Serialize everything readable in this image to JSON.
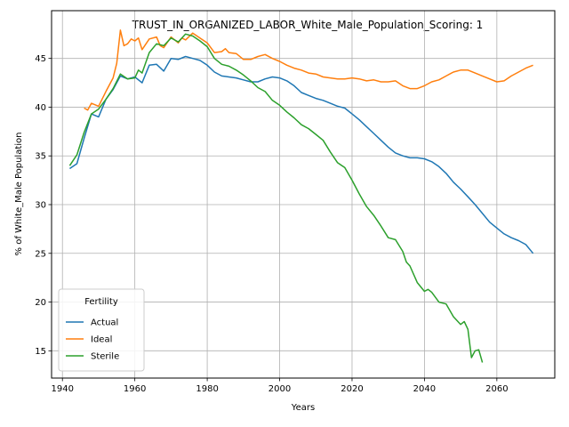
{
  "chart_data": {
    "type": "line",
    "title": "TRUST_IN_ORGANIZED_LABOR_White_Male_Population_Scoring: 1",
    "xlabel": "Years",
    "ylabel": "% of White_Male Population",
    "xlim": [
      1937,
      2076
    ],
    "ylim": [
      12.2,
      49.9
    ],
    "x_ticks": [
      1940,
      1960,
      1980,
      2000,
      2020,
      2040,
      2060
    ],
    "y_ticks": [
      15,
      20,
      25,
      30,
      35,
      40,
      45
    ],
    "grid": true,
    "legend": {
      "title": "Fertility",
      "placement": "lower-left"
    },
    "series": [
      {
        "name": "Actual",
        "color": "#1f77b4",
        "points": [
          [
            1942,
            33.7
          ],
          [
            1944,
            34.2
          ],
          [
            1946,
            36.8
          ],
          [
            1948,
            39.3
          ],
          [
            1950,
            39.0
          ],
          [
            1952,
            40.8
          ],
          [
            1954,
            41.8
          ],
          [
            1956,
            43.2
          ],
          [
            1958,
            42.9
          ],
          [
            1960,
            43.1
          ],
          [
            1962,
            42.5
          ],
          [
            1964,
            44.3
          ],
          [
            1966,
            44.4
          ],
          [
            1968,
            43.7
          ],
          [
            1970,
            45.0
          ],
          [
            1972,
            44.9
          ],
          [
            1974,
            45.2
          ],
          [
            1976,
            45.0
          ],
          [
            1978,
            44.8
          ],
          [
            1980,
            44.3
          ],
          [
            1982,
            43.6
          ],
          [
            1984,
            43.2
          ],
          [
            1986,
            43.1
          ],
          [
            1988,
            43.0
          ],
          [
            1990,
            42.8
          ],
          [
            1992,
            42.6
          ],
          [
            1994,
            42.6
          ],
          [
            1996,
            42.9
          ],
          [
            1998,
            43.1
          ],
          [
            2000,
            43.0
          ],
          [
            2002,
            42.7
          ],
          [
            2004,
            42.2
          ],
          [
            2006,
            41.5
          ],
          [
            2008,
            41.2
          ],
          [
            2010,
            40.9
          ],
          [
            2012,
            40.7
          ],
          [
            2014,
            40.4
          ],
          [
            2016,
            40.1
          ],
          [
            2018,
            39.9
          ],
          [
            2020,
            39.3
          ],
          [
            2022,
            38.7
          ],
          [
            2024,
            38.0
          ],
          [
            2026,
            37.3
          ],
          [
            2028,
            36.6
          ],
          [
            2030,
            35.9
          ],
          [
            2032,
            35.3
          ],
          [
            2034,
            35.0
          ],
          [
            2036,
            34.8
          ],
          [
            2038,
            34.8
          ],
          [
            2040,
            34.7
          ],
          [
            2042,
            34.4
          ],
          [
            2044,
            33.9
          ],
          [
            2046,
            33.2
          ],
          [
            2048,
            32.3
          ],
          [
            2050,
            31.6
          ],
          [
            2052,
            30.8
          ],
          [
            2054,
            30.0
          ],
          [
            2056,
            29.1
          ],
          [
            2058,
            28.2
          ],
          [
            2060,
            27.6
          ],
          [
            2062,
            27.0
          ],
          [
            2064,
            26.6
          ],
          [
            2066,
            26.3
          ],
          [
            2068,
            25.9
          ],
          [
            2070,
            25.0
          ]
        ]
      },
      {
        "name": "Ideal",
        "color": "#ff7f0e",
        "points": [
          [
            1946,
            39.9
          ],
          [
            1947,
            39.7
          ],
          [
            1948,
            40.4
          ],
          [
            1950,
            40.1
          ],
          [
            1952,
            41.6
          ],
          [
            1954,
            43.0
          ],
          [
            1955,
            44.5
          ],
          [
            1956,
            47.9
          ],
          [
            1957,
            46.3
          ],
          [
            1958,
            46.5
          ],
          [
            1959,
            47.0
          ],
          [
            1960,
            46.8
          ],
          [
            1961,
            47.1
          ],
          [
            1962,
            45.9
          ],
          [
            1964,
            47.0
          ],
          [
            1966,
            47.2
          ],
          [
            1967,
            46.3
          ],
          [
            1968,
            46.1
          ],
          [
            1970,
            47.2
          ],
          [
            1972,
            46.6
          ],
          [
            1973,
            47.1
          ],
          [
            1974,
            46.9
          ],
          [
            1976,
            47.6
          ],
          [
            1978,
            47.1
          ],
          [
            1980,
            46.6
          ],
          [
            1982,
            45.6
          ],
          [
            1984,
            45.7
          ],
          [
            1985,
            46.0
          ],
          [
            1986,
            45.6
          ],
          [
            1988,
            45.5
          ],
          [
            1990,
            44.9
          ],
          [
            1992,
            44.9
          ],
          [
            1994,
            45.2
          ],
          [
            1996,
            45.4
          ],
          [
            1998,
            45.0
          ],
          [
            2000,
            44.7
          ],
          [
            2002,
            44.3
          ],
          [
            2004,
            44.0
          ],
          [
            2006,
            43.8
          ],
          [
            2008,
            43.5
          ],
          [
            2010,
            43.4
          ],
          [
            2012,
            43.1
          ],
          [
            2014,
            43.0
          ],
          [
            2016,
            42.9
          ],
          [
            2018,
            42.9
          ],
          [
            2020,
            43.0
          ],
          [
            2022,
            42.9
          ],
          [
            2024,
            42.7
          ],
          [
            2026,
            42.8
          ],
          [
            2028,
            42.6
          ],
          [
            2030,
            42.6
          ],
          [
            2032,
            42.7
          ],
          [
            2034,
            42.2
          ],
          [
            2036,
            41.9
          ],
          [
            2038,
            41.9
          ],
          [
            2040,
            42.2
          ],
          [
            2042,
            42.6
          ],
          [
            2044,
            42.8
          ],
          [
            2046,
            43.2
          ],
          [
            2048,
            43.6
          ],
          [
            2050,
            43.8
          ],
          [
            2052,
            43.8
          ],
          [
            2054,
            43.5
          ],
          [
            2056,
            43.2
          ],
          [
            2058,
            42.9
          ],
          [
            2060,
            42.6
          ],
          [
            2062,
            42.7
          ],
          [
            2064,
            43.2
          ],
          [
            2066,
            43.6
          ],
          [
            2068,
            44.0
          ],
          [
            2070,
            44.3
          ]
        ]
      },
      {
        "name": "Sterile",
        "color": "#2ca02c",
        "points": [
          [
            1942,
            34.0
          ],
          [
            1944,
            35.1
          ],
          [
            1946,
            37.4
          ],
          [
            1948,
            39.3
          ],
          [
            1950,
            39.8
          ],
          [
            1952,
            40.8
          ],
          [
            1954,
            41.9
          ],
          [
            1956,
            43.4
          ],
          [
            1958,
            42.9
          ],
          [
            1960,
            43.0
          ],
          [
            1961,
            43.8
          ],
          [
            1962,
            43.5
          ],
          [
            1964,
            45.6
          ],
          [
            1966,
            46.5
          ],
          [
            1968,
            46.3
          ],
          [
            1970,
            47.1
          ],
          [
            1972,
            46.7
          ],
          [
            1974,
            47.5
          ],
          [
            1976,
            47.3
          ],
          [
            1978,
            46.8
          ],
          [
            1980,
            46.2
          ],
          [
            1982,
            45.0
          ],
          [
            1984,
            44.4
          ],
          [
            1986,
            44.2
          ],
          [
            1988,
            43.8
          ],
          [
            1990,
            43.3
          ],
          [
            1992,
            42.7
          ],
          [
            1994,
            42.0
          ],
          [
            1996,
            41.6
          ],
          [
            1998,
            40.7
          ],
          [
            2000,
            40.2
          ],
          [
            2002,
            39.5
          ],
          [
            2004,
            38.9
          ],
          [
            2006,
            38.2
          ],
          [
            2008,
            37.8
          ],
          [
            2010,
            37.2
          ],
          [
            2012,
            36.6
          ],
          [
            2014,
            35.4
          ],
          [
            2016,
            34.3
          ],
          [
            2018,
            33.8
          ],
          [
            2020,
            32.5
          ],
          [
            2022,
            31.1
          ],
          [
            2024,
            29.8
          ],
          [
            2026,
            28.9
          ],
          [
            2028,
            27.8
          ],
          [
            2030,
            26.6
          ],
          [
            2032,
            26.4
          ],
          [
            2034,
            25.2
          ],
          [
            2035,
            24.1
          ],
          [
            2036,
            23.7
          ],
          [
            2038,
            22.0
          ],
          [
            2040,
            21.1
          ],
          [
            2041,
            21.3
          ],
          [
            2042,
            21.0
          ],
          [
            2044,
            20.0
          ],
          [
            2046,
            19.8
          ],
          [
            2048,
            18.5
          ],
          [
            2050,
            17.7
          ],
          [
            2051,
            18.0
          ],
          [
            2052,
            17.2
          ],
          [
            2053,
            14.3
          ],
          [
            2054,
            15.0
          ],
          [
            2055,
            15.1
          ],
          [
            2056,
            13.8
          ]
        ]
      }
    ]
  }
}
